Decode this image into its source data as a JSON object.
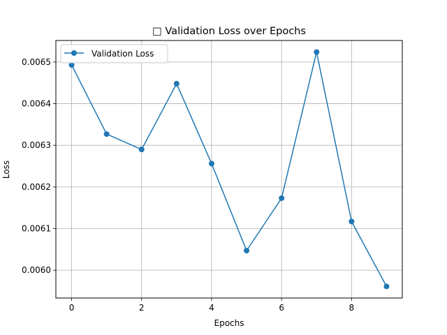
{
  "chart_data": {
    "type": "line",
    "title": "□ Validation Loss over Epochs",
    "xlabel": "Epochs",
    "ylabel": "Loss",
    "x": [
      0,
      1,
      2,
      3,
      4,
      5,
      6,
      7,
      8,
      9
    ],
    "series": [
      {
        "name": "Validation Loss",
        "values": [
          0.006493,
          0.006327,
          0.00629,
          0.006448,
          0.006256,
          0.006047,
          0.006173,
          0.006524,
          0.006117,
          0.005961
        ],
        "color": "#1f77b4",
        "marker": "circle"
      }
    ],
    "xlim": [
      -0.45,
      9.45
    ],
    "ylim": [
      0.0059332,
      0.0065518
    ],
    "xticks": [
      0,
      2,
      4,
      6,
      8
    ],
    "xtick_labels": [
      "0",
      "2",
      "4",
      "6",
      "8"
    ],
    "yticks": [
      0.006,
      0.0061,
      0.0062,
      0.0063,
      0.0064,
      0.0065
    ],
    "ytick_labels": [
      "0.0060",
      "0.0061",
      "0.0062",
      "0.0063",
      "0.0064",
      "0.0065"
    ],
    "grid": true,
    "legend_position": "top-left"
  }
}
